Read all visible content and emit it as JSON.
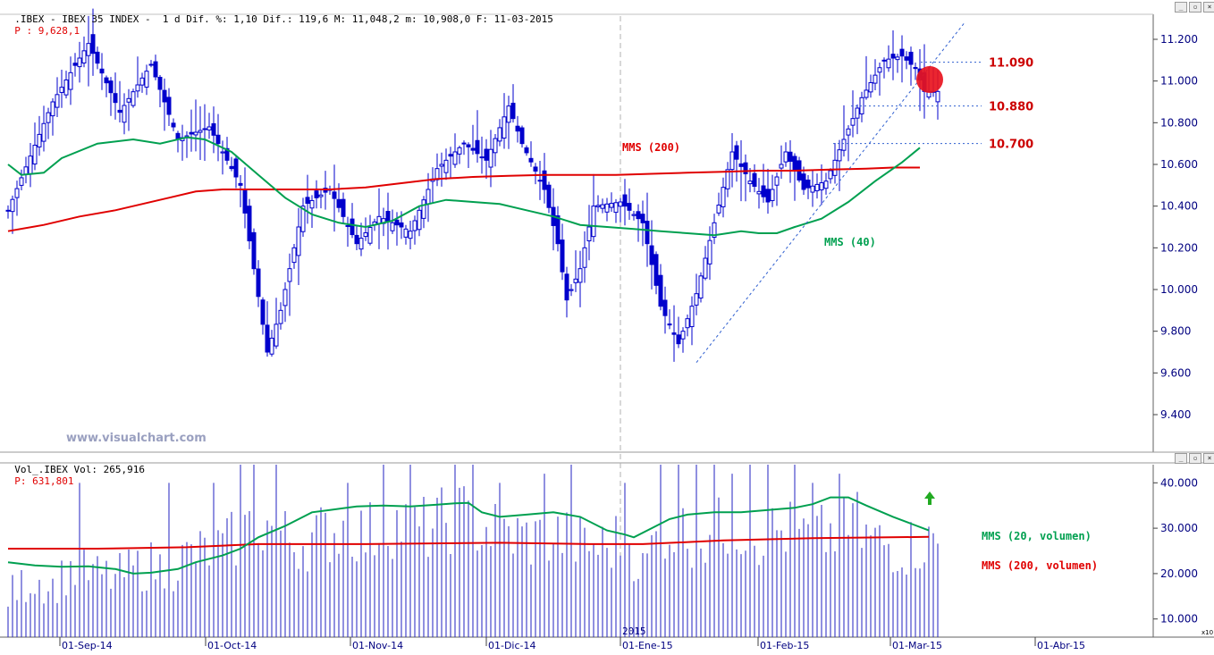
{
  "header": {
    "price_info": ".IBEX - IBEX 35 INDEX -  1 d Dif. %: 1,10 Dif.: 119,6 M: 11,048,2 m: 10,908,0 F: 11-03-2015",
    "price_prev": "P : 9,628,1",
    "vol_info": "Vol_.IBEX Vol: 265,916",
    "vol_prev": "P: 631,801"
  },
  "watermark": "www.visualchart.com",
  "year_marker": "2015",
  "x10_badge": "x10",
  "colors": {
    "candle": "#0000cc",
    "mms40": "#00a050",
    "mms200": "#e00000",
    "axis_text": "#000080",
    "level": "#cc0000"
  },
  "chart_data": [
    {
      "type": "candlestick",
      "y_ticks": [
        9.4,
        9.6,
        9.8,
        10.0,
        10.2,
        10.4,
        10.6,
        10.8,
        11.0,
        11.2
      ],
      "y_tick_labels": [
        "9.400",
        "9.600",
        "9.800",
        "10.000",
        "10.200",
        "10.400",
        "10.600",
        "10.800",
        "11.000",
        "11.200"
      ],
      "ylim": [
        9.22,
        11.32
      ],
      "x_tick_labels": [
        "01-Sep-14",
        "01-Oct-14",
        "01-Nov-14",
        "01-Dic-14",
        "01-Ene-15",
        "01-Feb-15",
        "01-Mar-15",
        "01-Abr-15"
      ],
      "candle_anchors": [
        [
          0,
          10.38
        ],
        [
          10,
          10.9
        ],
        [
          18,
          11.18
        ],
        [
          25,
          10.85
        ],
        [
          32,
          11.08
        ],
        [
          38,
          10.72
        ],
        [
          45,
          10.78
        ],
        [
          52,
          10.5
        ],
        [
          58,
          9.7
        ],
        [
          61,
          9.9
        ],
        [
          66,
          10.4
        ],
        [
          72,
          10.48
        ],
        [
          78,
          10.22
        ],
        [
          83,
          10.35
        ],
        [
          90,
          10.28
        ],
        [
          96,
          10.58
        ],
        [
          102,
          10.7
        ],
        [
          107,
          10.62
        ],
        [
          112,
          10.88
        ],
        [
          115,
          10.7
        ],
        [
          120,
          10.48
        ],
        [
          123,
          10.22
        ],
        [
          125,
          9.95
        ],
        [
          128,
          10.1
        ],
        [
          131,
          10.4
        ],
        [
          137,
          10.42
        ],
        [
          142,
          10.32
        ],
        [
          146,
          9.92
        ],
        [
          150,
          9.74
        ],
        [
          154,
          9.98
        ],
        [
          158,
          10.32
        ],
        [
          162,
          10.66
        ],
        [
          166,
          10.52
        ],
        [
          170,
          10.42
        ],
        [
          174,
          10.66
        ],
        [
          178,
          10.48
        ],
        [
          183,
          10.52
        ],
        [
          187,
          10.72
        ],
        [
          191,
          10.92
        ],
        [
          196,
          11.1
        ],
        [
          200,
          11.12
        ],
        [
          203,
          11.06
        ],
        [
          205,
          10.95
        ]
      ],
      "mms40": [
        [
          0,
          10.6
        ],
        [
          3,
          10.55
        ],
        [
          8,
          10.56
        ],
        [
          12,
          10.63
        ],
        [
          20,
          10.7
        ],
        [
          28,
          10.72
        ],
        [
          34,
          10.7
        ],
        [
          40,
          10.73
        ],
        [
          44,
          10.72
        ],
        [
          50,
          10.66
        ],
        [
          56,
          10.55
        ],
        [
          62,
          10.44
        ],
        [
          68,
          10.36
        ],
        [
          74,
          10.32
        ],
        [
          80,
          10.3
        ],
        [
          86,
          10.33
        ],
        [
          92,
          10.4
        ],
        [
          98,
          10.43
        ],
        [
          104,
          10.42
        ],
        [
          110,
          10.41
        ],
        [
          116,
          10.38
        ],
        [
          122,
          10.35
        ],
        [
          128,
          10.31
        ],
        [
          134,
          10.3
        ],
        [
          140,
          10.29
        ],
        [
          146,
          10.28
        ],
        [
          152,
          10.27
        ],
        [
          158,
          10.26
        ],
        [
          164,
          10.28
        ],
        [
          168,
          10.27
        ],
        [
          172,
          10.27
        ],
        [
          176,
          10.3
        ],
        [
          182,
          10.34
        ],
        [
          188,
          10.42
        ],
        [
          194,
          10.52
        ],
        [
          200,
          10.61
        ],
        [
          204,
          10.68
        ]
      ],
      "mms200": [
        [
          0,
          10.28
        ],
        [
          8,
          10.31
        ],
        [
          16,
          10.35
        ],
        [
          24,
          10.38
        ],
        [
          30,
          10.41
        ],
        [
          36,
          10.44
        ],
        [
          42,
          10.47
        ],
        [
          48,
          10.48
        ],
        [
          56,
          10.48
        ],
        [
          64,
          10.48
        ],
        [
          72,
          10.48
        ],
        [
          80,
          10.49
        ],
        [
          88,
          10.51
        ],
        [
          96,
          10.53
        ],
        [
          104,
          10.54
        ],
        [
          112,
          10.545
        ],
        [
          120,
          10.55
        ],
        [
          128,
          10.55
        ],
        [
          136,
          10.55
        ],
        [
          144,
          10.555
        ],
        [
          152,
          10.56
        ],
        [
          160,
          10.565
        ],
        [
          168,
          10.57
        ],
        [
          176,
          10.57
        ],
        [
          184,
          10.575
        ],
        [
          192,
          10.58
        ],
        [
          198,
          10.585
        ],
        [
          204,
          10.585
        ]
      ],
      "trendline": [
        [
          154,
          9.65
        ],
        [
          214,
          11.28
        ]
      ],
      "levels": [
        {
          "value": 11.09,
          "label": "11.090"
        },
        {
          "value": 10.88,
          "label": "10.880"
        },
        {
          "value": 10.7,
          "label": "10.700"
        }
      ],
      "annotations": {
        "mms200": "MMS (200)",
        "mms40": "MMS (40)"
      }
    },
    {
      "type": "bar",
      "y_ticks": [
        10,
        20,
        30,
        40
      ],
      "y_tick_labels": [
        "10.000",
        "20.000",
        "30.000",
        "40.000"
      ],
      "ylim": [
        6,
        44
      ],
      "vol_anchors": [
        [
          0,
          16
        ],
        [
          6,
          20
        ],
        [
          10,
          18
        ],
        [
          14,
          22
        ],
        [
          18,
          21
        ],
        [
          24,
          20
        ],
        [
          28,
          22
        ],
        [
          32,
          23
        ],
        [
          36,
          22
        ],
        [
          40,
          25
        ],
        [
          44,
          26
        ],
        [
          48,
          27
        ],
        [
          52,
          30
        ],
        [
          56,
          33
        ],
        [
          60,
          31
        ],
        [
          64,
          28
        ],
        [
          70,
          30
        ],
        [
          76,
          32
        ],
        [
          80,
          30
        ],
        [
          86,
          33
        ],
        [
          92,
          31
        ],
        [
          96,
          32
        ],
        [
          100,
          35
        ],
        [
          106,
          32
        ],
        [
          112,
          30
        ],
        [
          118,
          29
        ],
        [
          122,
          30
        ],
        [
          128,
          28
        ],
        [
          134,
          27
        ],
        [
          138,
          30
        ],
        [
          142,
          22
        ],
        [
          146,
          32
        ],
        [
          150,
          31
        ],
        [
          156,
          29
        ],
        [
          162,
          33
        ],
        [
          168,
          30
        ],
        [
          174,
          31
        ],
        [
          180,
          29
        ],
        [
          186,
          31
        ],
        [
          190,
          30
        ],
        [
          196,
          28
        ],
        [
          200,
          27
        ],
        [
          204,
          28
        ]
      ],
      "vol_spikes": [
        [
          16,
          40
        ],
        [
          36,
          40
        ],
        [
          46,
          40
        ],
        [
          52,
          44
        ],
        [
          55,
          44
        ],
        [
          60,
          44
        ],
        [
          76,
          40
        ],
        [
          84,
          44
        ],
        [
          90,
          44
        ],
        [
          100,
          44
        ],
        [
          104,
          44
        ],
        [
          110,
          40
        ],
        [
          120,
          42
        ],
        [
          126,
          44
        ],
        [
          138,
          40
        ],
        [
          146,
          44
        ],
        [
          150,
          44
        ],
        [
          154,
          44
        ],
        [
          158,
          44
        ],
        [
          162,
          42
        ],
        [
          166,
          44
        ],
        [
          170,
          44
        ],
        [
          176,
          44
        ],
        [
          180,
          40
        ],
        [
          186,
          42
        ],
        [
          190,
          38
        ]
      ],
      "mms20": [
        [
          0,
          22.5
        ],
        [
          6,
          21.8
        ],
        [
          12,
          21.5
        ],
        [
          18,
          21.6
        ],
        [
          24,
          21.0
        ],
        [
          28,
          20.0
        ],
        [
          32,
          20.2
        ],
        [
          38,
          21.0
        ],
        [
          42,
          22.5
        ],
        [
          48,
          24.0
        ],
        [
          52,
          25.5
        ],
        [
          56,
          28.0
        ],
        [
          62,
          30.5
        ],
        [
          68,
          33.5
        ],
        [
          72,
          34.0
        ],
        [
          78,
          34.8
        ],
        [
          84,
          35.0
        ],
        [
          90,
          34.8
        ],
        [
          96,
          35.2
        ],
        [
          100,
          35.5
        ],
        [
          103,
          35.6
        ],
        [
          106,
          33.5
        ],
        [
          110,
          32.5
        ],
        [
          116,
          33.0
        ],
        [
          122,
          33.5
        ],
        [
          128,
          32.5
        ],
        [
          134,
          29.5
        ],
        [
          138,
          28.6
        ],
        [
          140,
          28.0
        ],
        [
          144,
          30.0
        ],
        [
          148,
          32.0
        ],
        [
          152,
          33.0
        ],
        [
          158,
          33.5
        ],
        [
          164,
          33.5
        ],
        [
          170,
          34.0
        ],
        [
          176,
          34.5
        ],
        [
          180,
          35.3
        ],
        [
          184,
          36.8
        ],
        [
          188,
          36.8
        ],
        [
          192,
          35.0
        ],
        [
          198,
          32.5
        ],
        [
          202,
          31.0
        ],
        [
          206,
          29.5
        ]
      ],
      "mms200": [
        [
          0,
          25.5
        ],
        [
          20,
          25.5
        ],
        [
          40,
          25.8
        ],
        [
          56,
          26.5
        ],
        [
          80,
          26.5
        ],
        [
          110,
          26.8
        ],
        [
          130,
          26.5
        ],
        [
          142,
          26.5
        ],
        [
          160,
          27.3
        ],
        [
          180,
          27.8
        ],
        [
          206,
          28.1
        ]
      ],
      "annotations": {
        "mms20": "MMS (20, volumen)",
        "mms200": "MMS (200, volumen)"
      }
    }
  ]
}
